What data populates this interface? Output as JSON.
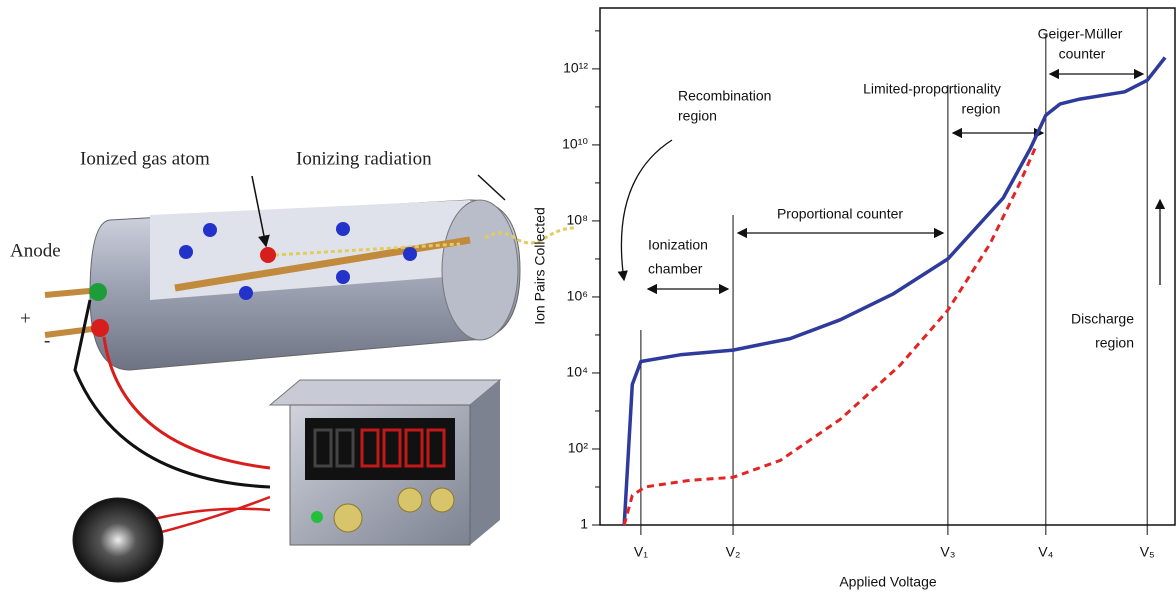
{
  "illustration": {
    "labels": [
      "Ionized gas atom",
      "Ionizing radiation",
      "Anode",
      "+",
      "-"
    ]
  },
  "chart_data": {
    "type": "line",
    "log_y": true,
    "x_label": "Applied Voltage",
    "y_label": "Ion Pairs Collected",
    "xlim": [
      0,
      100
    ],
    "ylim": [
      1,
      40000000000000
    ],
    "xticks": [
      {
        "value": 7.1,
        "label": "V₁"
      },
      {
        "value": 23.1,
        "label": "V₂"
      },
      {
        "value": 60.4,
        "label": "V₃"
      },
      {
        "value": 77.4,
        "label": "V₄"
      },
      {
        "value": 95.0,
        "label": "V₅"
      }
    ],
    "yticks": [
      1,
      {
        "value": 100,
        "label": "10²"
      },
      {
        "value": 10000,
        "label": "10⁴"
      },
      {
        "value": 1000000,
        "label": "10⁶"
      },
      {
        "value": 100000000,
        "label": "10⁸"
      },
      {
        "value": 10000000000,
        "label": "10¹⁰"
      },
      {
        "value": 1000000000000,
        "label": "10¹²"
      }
    ],
    "yminorticks": [
      10,
      1000,
      100000,
      10000000,
      1000000000,
      100000000000,
      10000000000000
    ],
    "series": [
      {
        "color": "#2e3b9c",
        "style": "solid",
        "x": [
          4.2,
          5.6,
          7.1,
          13.9,
          23.1,
          33.0,
          41.7,
          50.9,
          60.4,
          70.0,
          74.7,
          77.4,
          79.9,
          83.3,
          91.1,
          95.0,
          98.1
        ],
        "values": [
          1,
          5000,
          20000,
          30000,
          40000,
          80000,
          250000,
          1200000,
          10000000,
          400000000,
          8000000000,
          60000000000,
          120000000000,
          160000000000,
          250000000000,
          500000000000,
          2000000000000
        ]
      },
      {
        "color": "#e32424",
        "style": "dashed",
        "x": [
          4.2,
          5.6,
          7.8,
          15.6,
          23.1,
          31.3,
          41.7,
          52.1,
          60.4,
          67.7,
          72.9,
          75.5
        ],
        "values": [
          1,
          6,
          10,
          15,
          18,
          50,
          600,
          16000,
          450000,
          25000000,
          1000000000,
          8000000000
        ]
      }
    ],
    "annotations": [
      {
        "lines": [
          "Recombination",
          "region"
        ]
      },
      {
        "lines": [
          "Ionization",
          "chamber"
        ]
      },
      {
        "lines": [
          "Proportional counter"
        ]
      },
      {
        "lines": [
          "Limited-proportionality",
          "region"
        ]
      },
      {
        "lines": [
          "Geiger-Müller",
          "counter"
        ]
      },
      {
        "lines": [
          "Discharge",
          "region"
        ]
      }
    ]
  }
}
